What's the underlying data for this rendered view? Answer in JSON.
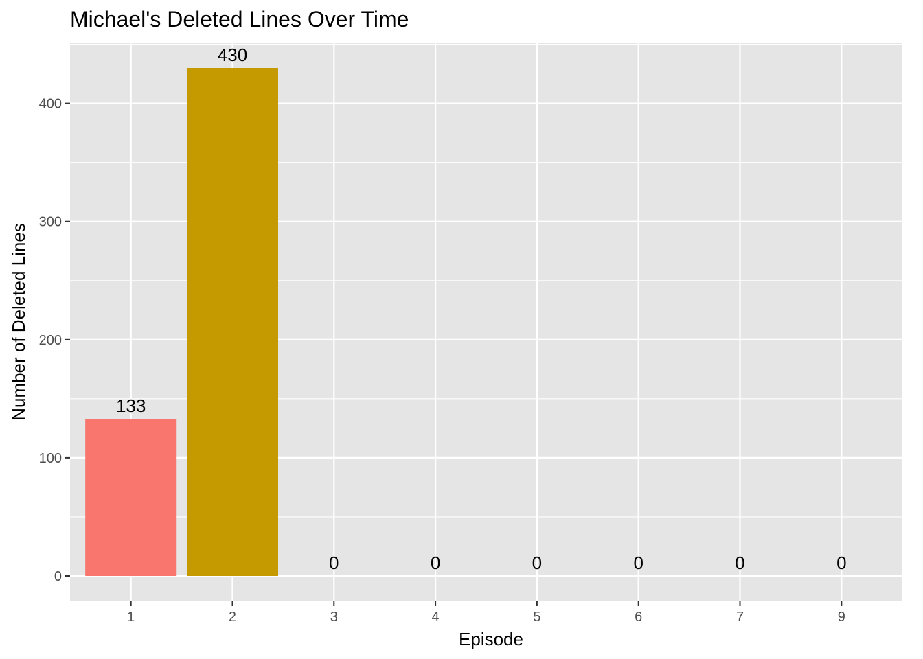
{
  "chart_data": {
    "type": "bar",
    "title": "Michael's Deleted Lines Over Time",
    "xlabel": "Episode",
    "ylabel": "Number of Deleted Lines",
    "categories": [
      "1",
      "2",
      "3",
      "4",
      "5",
      "6",
      "7",
      "9"
    ],
    "values": [
      133,
      430,
      0,
      0,
      0,
      0,
      0,
      0
    ],
    "data_labels": [
      "133",
      "430",
      "0",
      "0",
      "0",
      "0",
      "0",
      "0"
    ],
    "bar_colors": [
      "#F8766D",
      "#C49A00",
      "#53B400",
      "#00C094",
      "#00B6EB",
      "#A58AFF",
      "#FB61D7",
      "#FF6C91"
    ],
    "ylim": [
      -21.5,
      451.5
    ],
    "yticks": [
      0,
      100,
      200,
      300,
      400
    ],
    "ytick_labels": [
      "0",
      "100",
      "200",
      "300",
      "400"
    ],
    "grid": true,
    "legend": "none",
    "panel_background": "#E5E5E5",
    "grid_color": "#FFFFFF"
  }
}
